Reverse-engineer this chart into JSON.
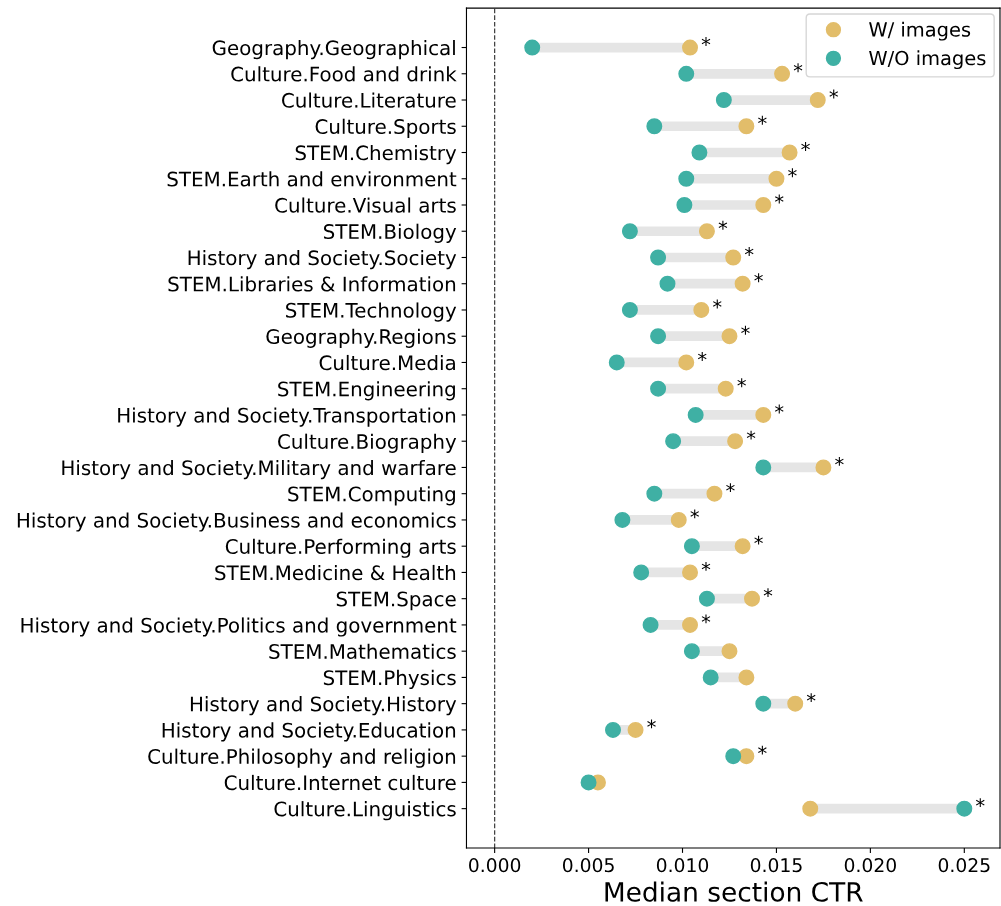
{
  "chart_data": {
    "type": "lollipop",
    "orientation": "horizontal",
    "xlabel": "Median section CTR",
    "categories": [
      "Geography.Geographical",
      "Culture.Food and drink",
      "Culture.Literature",
      "Culture.Sports",
      "STEM.Chemistry",
      "STEM.Earth and environment",
      "Culture.Visual arts",
      "STEM.Biology",
      "History and Society.Society",
      "STEM.Libraries & Information",
      "STEM.Technology",
      "Geography.Regions",
      "Culture.Media",
      "STEM.Engineering",
      "History and Society.Transportation",
      "Culture.Biography",
      "History and Society.Military and warfare",
      "STEM.Computing",
      "History and Society.Business and economics",
      "Culture.Performing arts",
      "STEM.Medicine & Health",
      "STEM.Space",
      "History and Society.Politics and government",
      "STEM.Mathematics",
      "STEM.Physics",
      "History and Society.History",
      "History and Society.Education",
      "Culture.Philosophy and religion",
      "Culture.Internet culture",
      "Culture.Linguistics"
    ],
    "series": [
      {
        "name": "W/ images",
        "color": "#e2bd6a",
        "values": [
          0.0104,
          0.0153,
          0.0172,
          0.0134,
          0.0157,
          0.015,
          0.0143,
          0.0113,
          0.0127,
          0.0132,
          0.011,
          0.0125,
          0.0102,
          0.0123,
          0.0143,
          0.0128,
          0.0175,
          0.0117,
          0.0098,
          0.0132,
          0.0104,
          0.0137,
          0.0104,
          0.0125,
          0.0134,
          0.016,
          0.0075,
          0.0134,
          0.0055,
          0.0168
        ]
      },
      {
        "name": "W/O images",
        "color": "#3fb0a4",
        "values": [
          0.002,
          0.0102,
          0.0122,
          0.0085,
          0.0109,
          0.0102,
          0.0101,
          0.0072,
          0.0087,
          0.0092,
          0.0072,
          0.0087,
          0.0065,
          0.0087,
          0.0107,
          0.0095,
          0.0143,
          0.0085,
          0.0068,
          0.0105,
          0.0078,
          0.0113,
          0.0083,
          0.0105,
          0.0115,
          0.0143,
          0.0063,
          0.0127,
          0.005,
          0.025
        ]
      }
    ],
    "xlim": [
      -0.0015,
      0.0269
    ],
    "xticks": [
      {
        "value": 0,
        "label": "0.000"
      },
      {
        "value": 0.005,
        "label": "0.005"
      },
      {
        "value": 0.01,
        "label": "0.010"
      },
      {
        "value": 0.015,
        "label": "0.015"
      },
      {
        "value": 0.02,
        "label": "0.020"
      },
      {
        "value": 0.025,
        "label": "0.025"
      }
    ],
    "ref_lines": [
      {
        "axis": "x",
        "value": 0,
        "color": "#444444",
        "line_style": "dashed"
      }
    ],
    "marker": "circle",
    "legend": "top right",
    "grid": false,
    "annotations": [
      {
        "text": "*",
        "x": 0.0104,
        "y": "Geography.Geographical"
      },
      {
        "text": "*",
        "x": 0.0153,
        "y": "Culture.Food and drink"
      },
      {
        "text": "*",
        "x": 0.0172,
        "y": "Culture.Literature"
      },
      {
        "text": "*",
        "x": 0.0134,
        "y": "Culture.Sports"
      },
      {
        "text": "*",
        "x": 0.0157,
        "y": "STEM.Chemistry"
      },
      {
        "text": "*",
        "x": 0.015,
        "y": "STEM.Earth and environment"
      },
      {
        "text": "*",
        "x": 0.0143,
        "y": "Culture.Visual arts"
      },
      {
        "text": "*",
        "x": 0.0113,
        "y": "STEM.Biology"
      },
      {
        "text": "*",
        "x": 0.0127,
        "y": "History and Society.Society"
      },
      {
        "text": "*",
        "x": 0.0132,
        "y": "STEM.Libraries & Information"
      },
      {
        "text": "*",
        "x": 0.011,
        "y": "STEM.Technology"
      },
      {
        "text": "*",
        "x": 0.0125,
        "y": "Geography.Regions"
      },
      {
        "text": "*",
        "x": 0.0102,
        "y": "Culture.Media"
      },
      {
        "text": "*",
        "x": 0.0123,
        "y": "STEM.Engineering"
      },
      {
        "text": "*",
        "x": 0.0143,
        "y": "History and Society.Transportation"
      },
      {
        "text": "*",
        "x": 0.0128,
        "y": "Culture.Biography"
      },
      {
        "text": "*",
        "x": 0.0175,
        "y": "History and Society.Military and warfare"
      },
      {
        "text": "*",
        "x": 0.0117,
        "y": "STEM.Computing"
      },
      {
        "text": "*",
        "x": 0.0098,
        "y": "History and Society.Business and economics"
      },
      {
        "text": "*",
        "x": 0.0132,
        "y": "Culture.Performing arts"
      },
      {
        "text": "*",
        "x": 0.0104,
        "y": "STEM.Medicine & Health"
      },
      {
        "text": "*",
        "x": 0.0137,
        "y": "STEM.Space"
      },
      {
        "text": "*",
        "x": 0.0104,
        "y": "History and Society.Politics and government"
      },
      {
        "text": "*",
        "x": 0.016,
        "y": "History and Society.History"
      },
      {
        "text": "*",
        "x": 0.0075,
        "y": "History and Society.Education"
      },
      {
        "text": "*",
        "x": 0.0134,
        "y": "Culture.Philosophy and religion"
      },
      {
        "text": "*",
        "x": 0.025,
        "y": "Culture.Linguistics"
      }
    ]
  }
}
